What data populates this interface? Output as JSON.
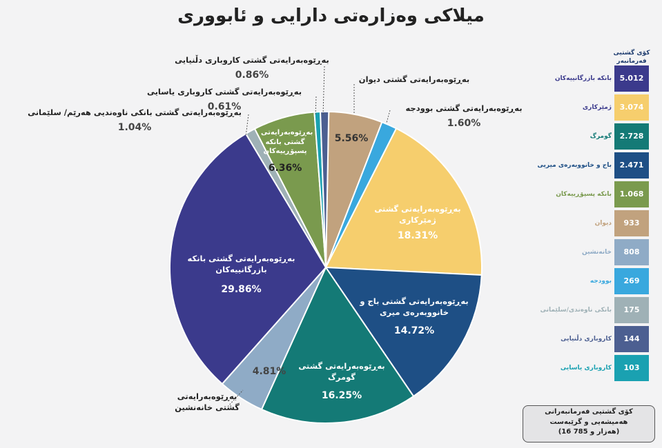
{
  "chart_data": {
    "type": "pie",
    "title": "میلاکی وەزارەتی دارایی و ئابووری",
    "slices": [
      {
        "label": "بەڕێوەبەرایەتی گشتی دیوان",
        "value": 5.56,
        "pct": "5.56%",
        "color": "#c1a27e"
      },
      {
        "label": "بەڕێوەبەرایەتی گشتی بوودجە",
        "value": 1.6,
        "pct": "1.60%",
        "color": "#39a8de"
      },
      {
        "label": "بەڕێوەبەرایەتی گشتی ژمێرکاری",
        "value": 18.31,
        "pct": "18.31%",
        "color": "#f6ce6d"
      },
      {
        "label": "بەڕێوەبەرایەتی گشتی باج و خانووبەرەی میری",
        "value": 14.72,
        "pct": "14.72%",
        "color": "#1e4f85"
      },
      {
        "label": "بەڕێوەبەرایەتی گشتی گومرگ",
        "value": 16.25,
        "pct": "16.25%",
        "color": "#147a76"
      },
      {
        "label": "بەڕێوەبەرایەتی گشتی خانەنشین",
        "value": 4.81,
        "pct": "4.81%",
        "color": "#8fabc6"
      },
      {
        "label": "بەڕێوەبەرایەتی گشتی بانکە بازرگانییەکان",
        "value": 29.86,
        "pct": "29.86%",
        "color": "#3b3a8c"
      },
      {
        "label": "بەڕێوەبەرایەتی گشتی بانکی ناوەندیی هەرێم/ سلێمانی",
        "value": 1.04,
        "pct": "1.04%",
        "color": "#9fb1b6"
      },
      {
        "label": "بەڕێوەبەرایەتی گشتی بانکە پسپۆڕییەکان",
        "value": 6.36,
        "pct": "6.36%",
        "color": "#7a9a4e"
      },
      {
        "label": "بەڕێوەبەرایەتی گشتی کاروباری یاسایی",
        "value": 0.61,
        "pct": "0.61%",
        "color": "#1aa1b1"
      },
      {
        "label": "بەڕێوەبەرایەتی گشتی کاروباری دڵنیایی",
        "value": 0.86,
        "pct": "0.86%",
        "color": "#4c5f91"
      }
    ]
  },
  "labels": {
    "diwan": {
      "t": "بەڕێوەبەرایەتی گشتی دیوان",
      "p": "5.56%"
    },
    "budget": {
      "t": "بەڕێوەبەرایەتی گشتی بوودجە",
      "p": "1.60%"
    },
    "accounting": {
      "t": "بەڕێوەبەرایەتی گشتی ژمێرکاری",
      "p": "18.31%"
    },
    "tax": {
      "t": "بەڕێوەبەرایەتی گشتی باج و خانووبەرەی میری",
      "p": "14.72%"
    },
    "customs": {
      "t": "بەڕێوەبەرایەتی گشتی گومرگ",
      "p": "16.25%"
    },
    "pension": {
      "t": "بەڕێوەبەرایەتی گشتی خانەنشین",
      "p": "4.81%"
    },
    "commercial": {
      "t": "بەڕێوەبەرایەتی گشتی بانکە بازرگانییەکان",
      "p": "29.86%"
    },
    "central": {
      "t": "بەڕێوەبەرایەتی گشتی بانکی ناوەندیی هەرێم/ سلێمانی",
      "p": "1.04%"
    },
    "specialized": {
      "t": "بەڕێوەبەرایەتی گشتی بانکە پسپۆڕییەکان",
      "p": "6.36%"
    },
    "legal": {
      "t": "بەڕێوەبەرایەتی گشتی کاروباری یاسایی",
      "p": "0.61%"
    },
    "insurance": {
      "t": "بەڕێوەبەرایەتی گشتی کاروباری دڵنیایی",
      "p": "0.86%"
    }
  },
  "sidebar": {
    "header": "کۆی گشتیی فەرمانبەر",
    "rows": [
      {
        "name": "بانکە بازرگانییەکان",
        "value": "5.012",
        "color": "#3b3a8c",
        "text_color": "#3b3a8c"
      },
      {
        "name": "ژمێرکاری",
        "value": "3.074",
        "color": "#f6ce6d",
        "text_color": "#3b3a8c"
      },
      {
        "name": "گومرگ",
        "value": "2.728",
        "color": "#147a76",
        "text_color": "#147a76"
      },
      {
        "name": "باج و خانووبەرەی میریی",
        "value": "2.471",
        "color": "#1e4f85",
        "text_color": "#1e4f85"
      },
      {
        "name": "بانکە پسپۆڕییەکان",
        "value": "1.068",
        "color": "#7a9a4e",
        "text_color": "#7a9a4e"
      },
      {
        "name": "دیوان",
        "value": "933",
        "color": "#c1a27e",
        "text_color": "#c1a27e"
      },
      {
        "name": "خانەنشین",
        "value": "808",
        "color": "#8fabc6",
        "text_color": "#8fabc6"
      },
      {
        "name": "بوودجە",
        "value": "269",
        "color": "#39a8de",
        "text_color": "#39a8de"
      },
      {
        "name": "بانکی ناوەندی/سلێمانی",
        "value": "175",
        "color": "#9fb1b6",
        "text_color": "#9fb1b6"
      },
      {
        "name": "کاروباری دڵنیایی",
        "value": "144",
        "color": "#4c5f91",
        "text_color": "#4c5f91"
      },
      {
        "name": "کاروباری یاسایی",
        "value": "103",
        "color": "#1aa1b1",
        "text_color": "#1aa1b1"
      }
    ],
    "total_line1": "کۆی گشتیی فەرمانبەرانی",
    "total_line2": "هەمیشەیی و گرێبەست",
    "total_line3": "(16 هەزار و 785)"
  }
}
